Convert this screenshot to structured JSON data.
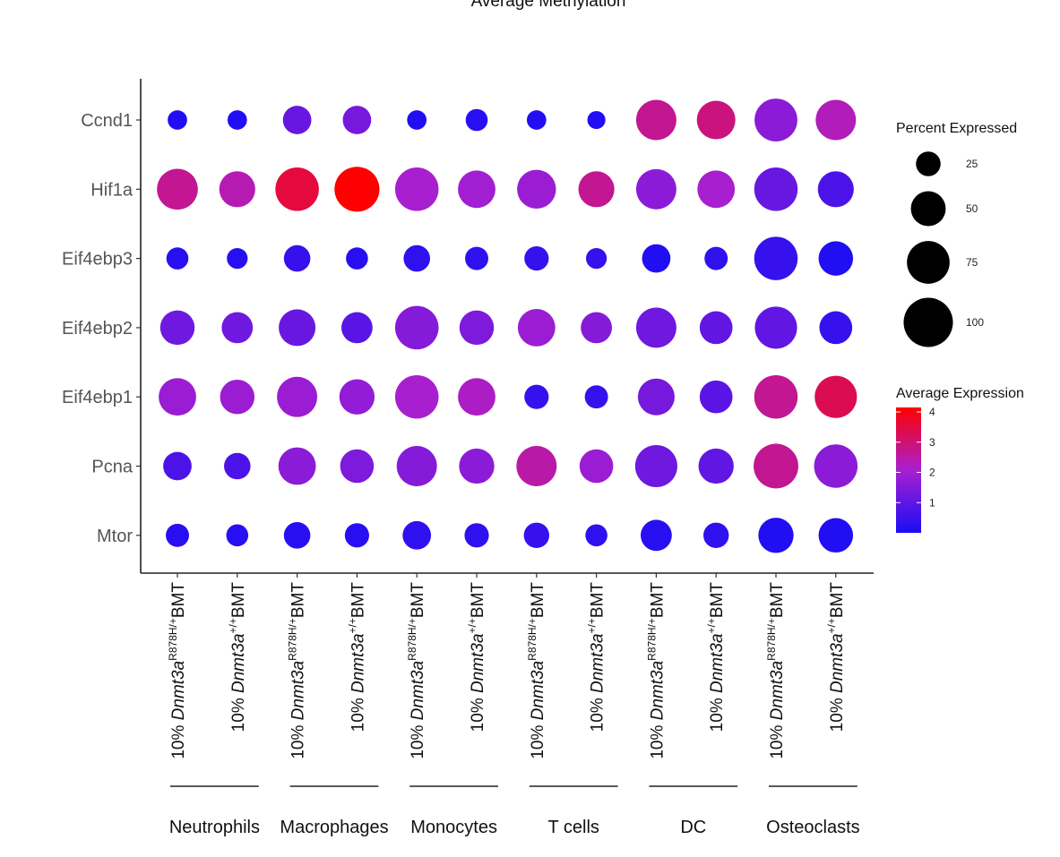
{
  "chart_data": {
    "type": "dot",
    "title": "Average Methylation",
    "genes": [
      "Ccnd1",
      "Hif1a",
      "Eif4ebp3",
      "Eif4ebp2",
      "Eif4ebp1",
      "Pcna",
      "Mtor"
    ],
    "columns": [
      {
        "prefix": "10% ",
        "gene": "Dnmt3a",
        "sup": "R878H/+",
        "suffix": "BMT"
      },
      {
        "prefix": "10% ",
        "gene": "Dnmt3a",
        "sup": "+/+",
        "suffix": "BMT"
      },
      {
        "prefix": "10% ",
        "gene": "Dnmt3a",
        "sup": "R878H/+",
        "suffix": "BMT"
      },
      {
        "prefix": "10% ",
        "gene": "Dnmt3a",
        "sup": "+/+",
        "suffix": "BMT"
      },
      {
        "prefix": "10% ",
        "gene": "Dnmt3a",
        "sup": "R878H/+",
        "suffix": "BMT"
      },
      {
        "prefix": "10% ",
        "gene": "Dnmt3a",
        "sup": "+/+",
        "suffix": "BMT"
      },
      {
        "prefix": "10% ",
        "gene": "Dnmt3a",
        "sup": "R878H/+",
        "suffix": "BMT"
      },
      {
        "prefix": "10% ",
        "gene": "Dnmt3a",
        "sup": "+/+",
        "suffix": "BMT"
      },
      {
        "prefix": "10% ",
        "gene": "Dnmt3a",
        "sup": "R878H/+",
        "suffix": "BMT"
      },
      {
        "prefix": "10% ",
        "gene": "Dnmt3a",
        "sup": "+/+",
        "suffix": "BMT"
      },
      {
        "prefix": "10% ",
        "gene": "Dnmt3a",
        "sup": "R878H/+",
        "suffix": "BMT"
      },
      {
        "prefix": "10% ",
        "gene": "Dnmt3a",
        "sup": "+/+",
        "suffix": "BMT"
      }
    ],
    "groups": [
      "Neutrophils",
      "Macrophages",
      "Monocytes",
      "T cells",
      "DC",
      "Osteoclasts"
    ],
    "percent_expressed": [
      [
        14,
        14,
        30,
        30,
        14,
        18,
        14,
        12,
        60,
        55,
        68,
        60
      ],
      [
        62,
        48,
        70,
        75,
        70,
        52,
        56,
        48,
        60,
        52,
        70,
        48
      ],
      [
        18,
        16,
        26,
        18,
        26,
        20,
        22,
        16,
        30,
        20,
        70,
        44
      ],
      [
        44,
        36,
        50,
        36,
        70,
        44,
        52,
        36,
        60,
        40,
        66,
        40
      ],
      [
        52,
        44,
        60,
        46,
        70,
        52,
        22,
        20,
        50,
        40,
        70,
        66
      ],
      [
        30,
        26,
        52,
        42,
        60,
        46,
        60,
        42,
        66,
        46,
        74,
        70
      ],
      [
        20,
        18,
        26,
        22,
        30,
        22,
        24,
        18,
        36,
        24,
        46,
        44
      ]
    ],
    "average_expression": [
      [
        0.1,
        0.1,
        1.1,
        1.3,
        0.1,
        0.2,
        0.1,
        0.1,
        2.6,
        2.8,
        1.6,
        2.2
      ],
      [
        2.6,
        2.3,
        3.4,
        4.0,
        2.0,
        1.9,
        1.8,
        2.6,
        1.6,
        2.0,
        1.1,
        0.7
      ],
      [
        0.2,
        0.2,
        0.4,
        0.2,
        0.3,
        0.3,
        0.4,
        0.4,
        0.1,
        0.3,
        0.4,
        0.1
      ],
      [
        1.2,
        1.2,
        1.1,
        0.9,
        1.5,
        1.4,
        1.8,
        1.5,
        1.2,
        1.0,
        1.0,
        0.4
      ],
      [
        1.8,
        1.8,
        1.8,
        1.7,
        2.0,
        2.1,
        0.4,
        0.4,
        1.3,
        0.9,
        2.6,
        3.2
      ],
      [
        0.7,
        0.7,
        1.6,
        1.4,
        1.5,
        1.6,
        2.4,
        1.8,
        1.2,
        1.0,
        2.6,
        1.6
      ],
      [
        0.2,
        0.2,
        0.2,
        0.2,
        0.3,
        0.3,
        0.4,
        0.3,
        0.2,
        0.3,
        0.1,
        0.1
      ]
    ],
    "size_legend": {
      "title": "Percent Expressed",
      "breaks": [
        25,
        50,
        75,
        100
      ]
    },
    "color_legend": {
      "title": "Average Expression",
      "ticks": [
        1,
        2,
        3,
        4
      ],
      "range": [
        0,
        4
      ],
      "low_color": "#1a0df5",
      "mid_color": "#a81fd0",
      "high_color": "#ff0000"
    },
    "grid": false,
    "legend_position": "right"
  }
}
